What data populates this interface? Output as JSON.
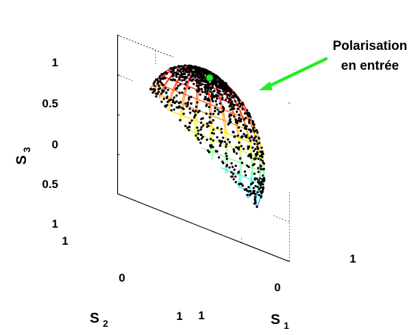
{
  "chart_data": {
    "type": "scatter",
    "title": "",
    "axes": {
      "x": {
        "label": "S",
        "sub": "1",
        "ticks": [
          "1",
          "0",
          "1"
        ]
      },
      "y": {
        "label": "S",
        "sub": "2",
        "ticks": [
          "1",
          "0",
          "1"
        ]
      },
      "z": {
        "label": "S",
        "sub": "3",
        "ticks": [
          "1",
          "0.5",
          "0",
          "0.5",
          "1"
        ]
      }
    },
    "xlim": [
      -1,
      1
    ],
    "ylim": [
      -1,
      1
    ],
    "zlim": [
      -1,
      1
    ],
    "grid": true,
    "surface": "unit-sphere-mesh",
    "surface_colormap": "jet",
    "point_count": 1000,
    "points_distribution": "random points on the sphere, denser near the input polarisation",
    "input_polarisation": {
      "x": 0.35,
      "y": 0.15,
      "z": 0.92
    },
    "annotation": {
      "line1": "Polarisation",
      "line2": "en entrée",
      "arrow_color": "#22ee22"
    },
    "marker_color": "#000000"
  }
}
